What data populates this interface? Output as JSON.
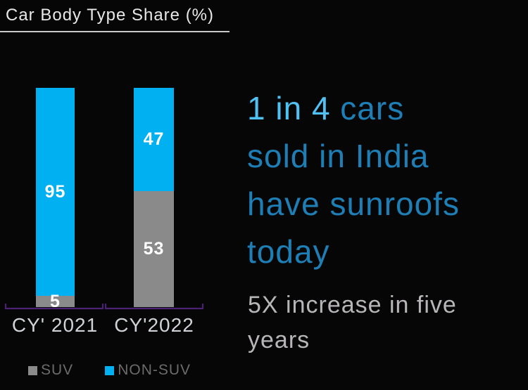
{
  "title": "Car Body Type Share (%)",
  "chart_data": {
    "type": "bar",
    "stacked": true,
    "categories": [
      "CY' 2021",
      "CY'2022"
    ],
    "series": [
      {
        "name": "SUV",
        "color": "#8a8a8a",
        "values": [
          5,
          53
        ]
      },
      {
        "name": "NON-SUV",
        "color": "#00b0f0",
        "values": [
          95,
          47
        ]
      }
    ],
    "title": "Car Body Type Share (%)",
    "ylim": [
      0,
      100
    ],
    "value_labels": true,
    "legend_position": "bottom",
    "axis_color": "#4b2173",
    "background": "#060606",
    "value_label_color": "#ffffff",
    "category_label_color": "#cfd2d6"
  },
  "headline": {
    "highlight": "1 in 4",
    "rest": " cars\nsold in India\nhave sunroofs\ntoday",
    "highlight_color": "#4fc1f2",
    "rest_color": "#1d7fb6"
  },
  "subheadline": {
    "text": "5X increase in five\nyears",
    "color": "#b7b5b8"
  }
}
